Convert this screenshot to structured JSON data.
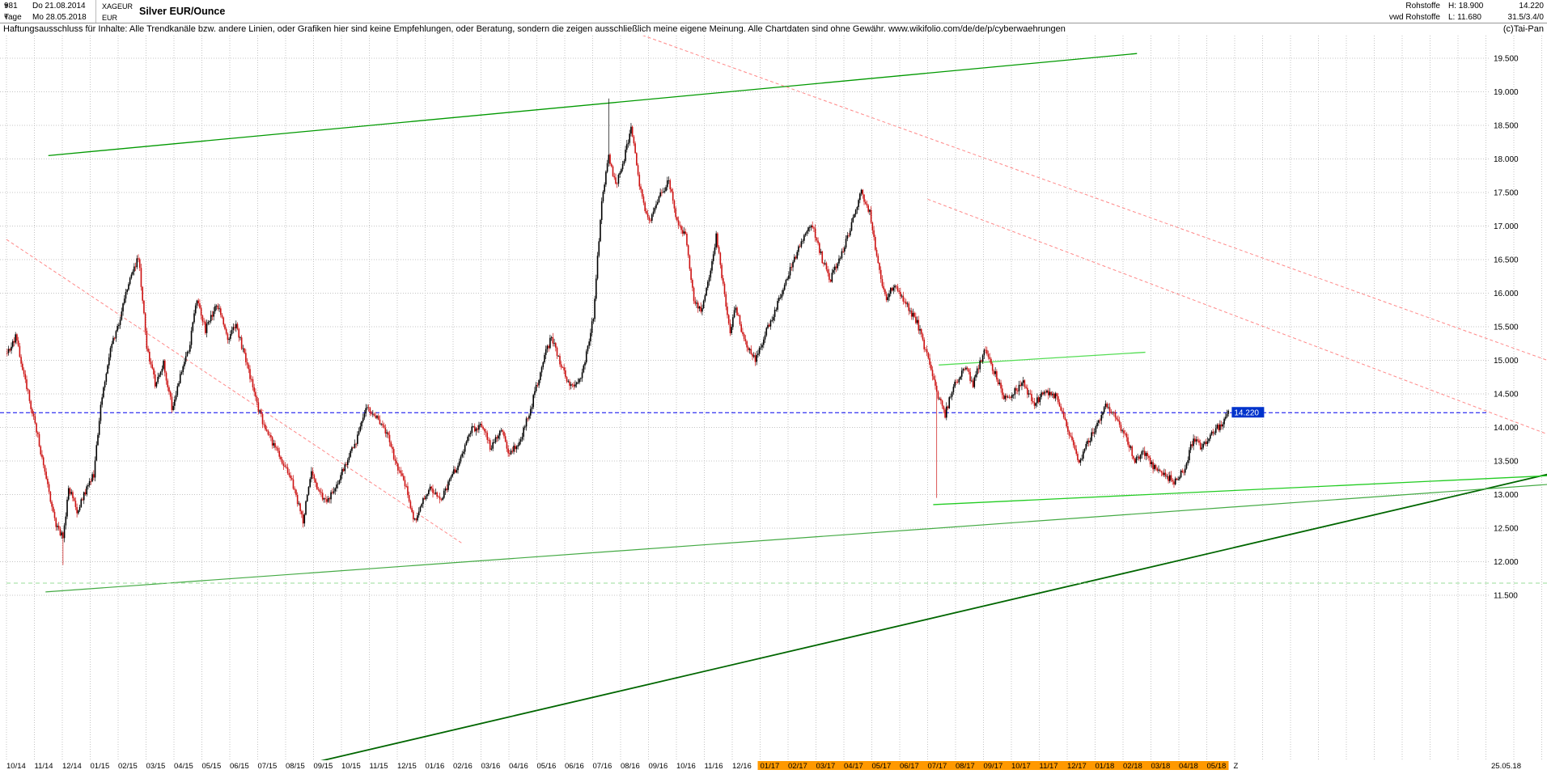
{
  "header": {
    "bars_count": "981",
    "start_day_label": "Do 21.08.2014",
    "period_label": "Tage",
    "end_day_label": "Mo 28.05.2018",
    "symbol": "XAGEUR",
    "currency": "EUR",
    "title": "Silver EUR/Ounce",
    "right": {
      "category": "Rohstoffe",
      "provider": "vwd Rohstoffe",
      "high_label": "H: 18.900",
      "low_label": "L: 11.680",
      "last_price": "14.220",
      "stats": "31.5/3.4/0",
      "copyright": "(c)Tai-Pan"
    }
  },
  "disclaimer": "Haftungsausschluss für Inhalte: Alle Trendkanäle bzw. andere Linien, oder Grafiken hier sind keine Empfehlungen, oder Beratung, sondern die zeigen ausschließlich meine eigene Meinung. Alle Chartdaten sind ohne Gewähr.  www.wikifolio.com/de/de/p/cyberwaehrungen",
  "chart_data": {
    "type": "candlestick",
    "title": "Silver EUR/Ounce",
    "instrument": "XAGEUR",
    "period": "Tage",
    "high": 18.9,
    "low": 11.68,
    "current_price": 14.22,
    "current_price_label": "14.220",
    "y_ticks": {
      "min": 11.5,
      "max": 19.5,
      "step": 0.5,
      "decimals": 3
    },
    "y_range_visible": [
      9.0,
      19.84
    ],
    "x_months": [
      "10/14",
      "11/14",
      "12/14",
      "01/15",
      "02/15",
      "03/15",
      "04/15",
      "05/15",
      "06/15",
      "07/15",
      "08/15",
      "09/15",
      "10/15",
      "11/15",
      "12/15",
      "01/16",
      "02/16",
      "03/16",
      "04/16",
      "05/16",
      "06/16",
      "07/16",
      "08/16",
      "09/16",
      "10/16",
      "11/16",
      "12/16",
      "01/17",
      "02/17",
      "03/17",
      "04/17",
      "05/17",
      "06/17",
      "07/17",
      "08/17",
      "09/17",
      "10/17",
      "11/17",
      "12/17",
      "01/18",
      "02/18",
      "03/18",
      "04/18",
      "05/18"
    ],
    "x_end_label": "25.05.18",
    "x_end_marker": "Z",
    "x_highlight_from": "01/17",
    "price_path_anchors": [
      [
        0,
        15.1
      ],
      [
        0.3,
        15.35
      ],
      [
        0.7,
        14.6
      ],
      [
        1.0,
        14.05
      ],
      [
        1.35,
        13.35
      ],
      [
        1.7,
        12.6
      ],
      [
        2.0,
        12.35
      ],
      [
        2.2,
        13.1
      ],
      [
        2.5,
        12.75
      ],
      [
        2.8,
        13.05
      ],
      [
        3.1,
        13.3
      ],
      [
        3.4,
        14.5
      ],
      [
        3.7,
        15.2
      ],
      [
        4.0,
        15.55
      ],
      [
        4.3,
        16.1
      ],
      [
        4.7,
        16.55
      ],
      [
        5.0,
        15.2
      ],
      [
        5.3,
        14.65
      ],
      [
        5.6,
        14.95
      ],
      [
        5.9,
        14.3
      ],
      [
        6.2,
        14.75
      ],
      [
        6.5,
        15.15
      ],
      [
        6.8,
        15.9
      ],
      [
        7.1,
        15.45
      ],
      [
        7.5,
        15.85
      ],
      [
        7.9,
        15.35
      ],
      [
        8.2,
        15.5
      ],
      [
        8.6,
        14.95
      ],
      [
        9.0,
        14.25
      ],
      [
        9.4,
        13.85
      ],
      [
        9.8,
        13.55
      ],
      [
        10.2,
        13.2
      ],
      [
        10.6,
        12.6
      ],
      [
        10.9,
        13.35
      ],
      [
        11.2,
        13.0
      ],
      [
        11.5,
        12.9
      ],
      [
        11.8,
        13.15
      ],
      [
        12.1,
        13.45
      ],
      [
        12.5,
        13.8
      ],
      [
        12.9,
        14.3
      ],
      [
        13.3,
        14.1
      ],
      [
        13.7,
        13.8
      ],
      [
        14.0,
        13.35
      ],
      [
        14.3,
        13.1
      ],
      [
        14.6,
        12.6
      ],
      [
        14.9,
        12.95
      ],
      [
        15.2,
        13.1
      ],
      [
        15.5,
        12.9
      ],
      [
        15.8,
        13.15
      ],
      [
        16.2,
        13.5
      ],
      [
        16.6,
        13.95
      ],
      [
        17.0,
        14.05
      ],
      [
        17.3,
        13.7
      ],
      [
        17.7,
        13.95
      ],
      [
        18.0,
        13.6
      ],
      [
        18.4,
        13.85
      ],
      [
        18.8,
        14.35
      ],
      [
        19.2,
        15.0
      ],
      [
        19.5,
        15.35
      ],
      [
        19.8,
        14.95
      ],
      [
        20.2,
        14.6
      ],
      [
        20.6,
        14.8
      ],
      [
        21.0,
        15.65
      ],
      [
        21.3,
        17.4
      ],
      [
        21.55,
        18.05
      ],
      [
        21.8,
        17.6
      ],
      [
        22.1,
        18.0
      ],
      [
        22.35,
        18.45
      ],
      [
        22.7,
        17.5
      ],
      [
        23.0,
        17.05
      ],
      [
        23.4,
        17.45
      ],
      [
        23.7,
        17.7
      ],
      [
        24.0,
        17.05
      ],
      [
        24.3,
        16.85
      ],
      [
        24.6,
        15.9
      ],
      [
        24.9,
        15.75
      ],
      [
        25.2,
        16.35
      ],
      [
        25.4,
        16.85
      ],
      [
        25.7,
        15.95
      ],
      [
        25.9,
        15.45
      ],
      [
        26.1,
        15.8
      ],
      [
        26.4,
        15.3
      ],
      [
        26.8,
        15.0
      ],
      [
        27.2,
        15.45
      ],
      [
        27.6,
        15.85
      ],
      [
        28.0,
        16.3
      ],
      [
        28.4,
        16.7
      ],
      [
        28.8,
        17.05
      ],
      [
        29.2,
        16.5
      ],
      [
        29.5,
        16.2
      ],
      [
        29.9,
        16.6
      ],
      [
        30.3,
        17.1
      ],
      [
        30.6,
        17.5
      ],
      [
        30.9,
        17.2
      ],
      [
        31.2,
        16.4
      ],
      [
        31.5,
        15.9
      ],
      [
        31.8,
        16.15
      ],
      [
        32.2,
        15.85
      ],
      [
        32.6,
        15.55
      ],
      [
        33.0,
        15.0
      ],
      [
        33.3,
        14.5
      ],
      [
        33.6,
        14.2
      ],
      [
        33.9,
        14.6
      ],
      [
        34.3,
        14.9
      ],
      [
        34.6,
        14.65
      ],
      [
        35.0,
        15.15
      ],
      [
        35.4,
        14.8
      ],
      [
        35.7,
        14.45
      ],
      [
        36.0,
        14.5
      ],
      [
        36.4,
        14.65
      ],
      [
        36.8,
        14.35
      ],
      [
        37.2,
        14.55
      ],
      [
        37.6,
        14.45
      ],
      [
        38.0,
        13.95
      ],
      [
        38.4,
        13.5
      ],
      [
        38.8,
        13.85
      ],
      [
        39.1,
        14.1
      ],
      [
        39.4,
        14.35
      ],
      [
        39.8,
        14.05
      ],
      [
        40.1,
        13.85
      ],
      [
        40.4,
        13.5
      ],
      [
        40.7,
        13.65
      ],
      [
        41.0,
        13.45
      ],
      [
        41.4,
        13.3
      ],
      [
        41.8,
        13.2
      ],
      [
        42.2,
        13.4
      ],
      [
        42.5,
        13.85
      ],
      [
        42.8,
        13.7
      ],
      [
        43.1,
        13.9
      ],
      [
        43.5,
        14.05
      ],
      [
        43.75,
        14.22
      ]
    ],
    "spikes": [
      {
        "m": 2.0,
        "low": 11.95
      },
      {
        "m": 21.55,
        "high": 18.9
      },
      {
        "m": 33.3,
        "low": 12.95
      }
    ],
    "trendlines": [
      {
        "name": "upper-channel-green",
        "color": "#009900",
        "width": 1.3,
        "dash": null,
        "from": [
          1.5,
          18.05
        ],
        "to": [
          40.5,
          19.57
        ]
      },
      {
        "name": "downtrend-red-left",
        "color": "#ff8888",
        "width": 1,
        "dash": "4 3",
        "from": [
          0,
          16.8
        ],
        "to": [
          16.3,
          12.28
        ]
      },
      {
        "name": "downtrend-red-main",
        "color": "#ff8888",
        "width": 1,
        "dash": "4 3",
        "from": [
          22.4,
          19.9
        ],
        "to": [
          55.2,
          15.0
        ]
      },
      {
        "name": "downtrend-red-secondary",
        "color": "#ff8888",
        "width": 1,
        "dash": "4 3",
        "from": [
          33.0,
          17.4
        ],
        "to": [
          55.2,
          13.9
        ]
      },
      {
        "name": "support-dark-green",
        "color": "#006600",
        "width": 1.8,
        "dash": null,
        "from": [
          9.9,
          8.9
        ],
        "to": [
          55.2,
          13.3
        ]
      },
      {
        "name": "support-green-long",
        "color": "#44aa44",
        "width": 1.2,
        "dash": null,
        "from": [
          1.4,
          11.55
        ],
        "to": [
          55.2,
          13.15
        ]
      },
      {
        "name": "support-bright-green-lows",
        "color": "#22cc22",
        "width": 1.3,
        "dash": null,
        "from": [
          33.2,
          12.85
        ],
        "to": [
          55.2,
          13.28
        ]
      },
      {
        "name": "resistance-light-green",
        "color": "#55dd55",
        "width": 1.3,
        "dash": null,
        "from": [
          33.4,
          14.93
        ],
        "to": [
          40.8,
          15.12
        ]
      },
      {
        "name": "horizontal-dashed-green-low",
        "color": "#99dd99",
        "width": 1,
        "dash": "5 4",
        "from": [
          0,
          11.68
        ],
        "to": [
          55.2,
          11.68
        ]
      }
    ],
    "colors": {
      "up": "#000000",
      "down": "#cc1111",
      "grid": "#c4c4c4",
      "price_line": "#0000ee",
      "badge_bg": "#0033cc",
      "badge_text": "#ffffff",
      "axis_text": "#000000",
      "month_highlight_bg": "#ff9900"
    }
  }
}
